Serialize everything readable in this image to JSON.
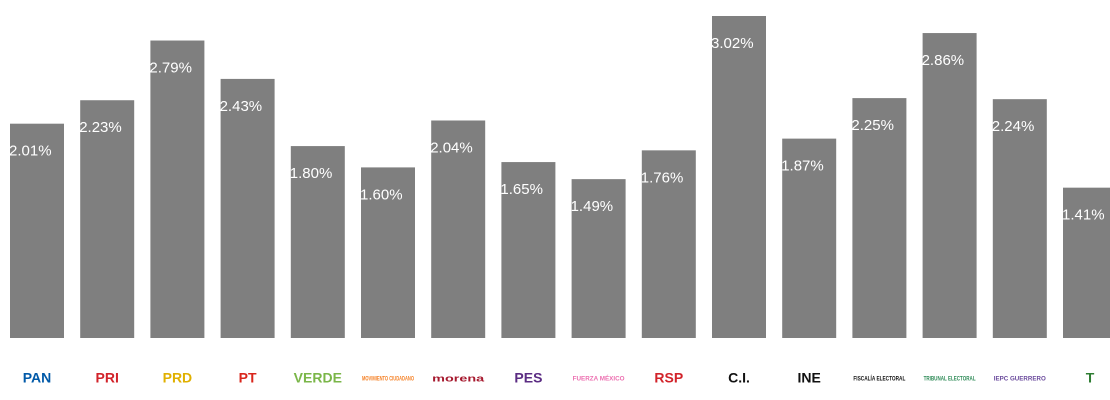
{
  "chart_data": {
    "type": "bar",
    "categories": [
      "PAN",
      "PRI",
      "PRD",
      "PT",
      "VERDE",
      "MOVIMIENTO CIUDADANO",
      "morena",
      "PES",
      "FUERZA MÉXICO",
      "RSP",
      "C.I.",
      "INE",
      "FISCALÍA ELECTORAL",
      "TRIBUNAL ELECTORAL",
      "IEPC GUERRERO",
      "T"
    ],
    "values": [
      2.01,
      2.23,
      2.79,
      2.43,
      1.8,
      1.6,
      2.04,
      1.65,
      1.49,
      1.76,
      3.02,
      1.87,
      2.25,
      2.86,
      2.24,
      1.41
    ],
    "value_labels": [
      "2.01%",
      "2.23%",
      "2.79%",
      "2.43%",
      "1.80%",
      "1.60%",
      "2.04%",
      "1.65%",
      "1.49%",
      "1.76%",
      "3.02%",
      "1.87%",
      "2.25%",
      "2.86%",
      "2.24%",
      "1.41%"
    ],
    "color": "#7f7f7f",
    "category_colors": [
      "#0059a8",
      "#d2232a",
      "#e0b000",
      "#d9261c",
      "#7ab648",
      "#f58025",
      "#a6192e",
      "#5b2c83",
      "#ec6fb0",
      "#d2232a",
      "#111111",
      "#111111",
      "#111111",
      "#2e8b57",
      "#6a4a9c",
      "#2e7d32"
    ]
  }
}
